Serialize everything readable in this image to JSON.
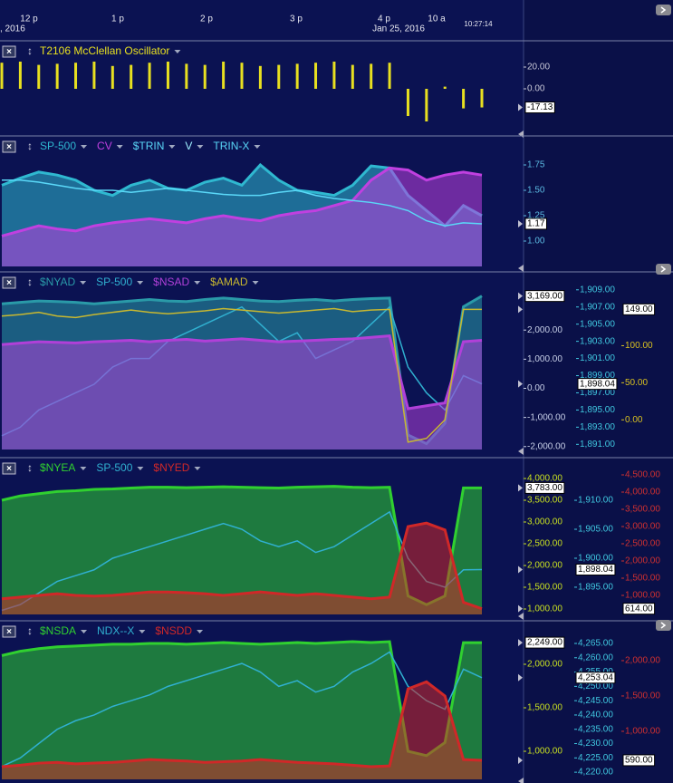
{
  "header": {
    "time_labels": [
      "12 p",
      "1 p",
      "2 p",
      "3 p",
      "4 p",
      "10 a"
    ],
    "date_left": ", 2016",
    "date_right": "Jan 25, 2016",
    "clock": "10:27:14"
  },
  "chart_data": [
    {
      "type": "bar",
      "series": [
        {
          "name": "T2106 McClellan Oscillator",
          "color": "#e8e020",
          "style": "bar",
          "axis": "y",
          "values": [
            24,
            25,
            22,
            23,
            24,
            25,
            21,
            22,
            24,
            25,
            23,
            22,
            25,
            24,
            21,
            22,
            23,
            24,
            25,
            22,
            23,
            24,
            -25,
            -30,
            2,
            -18,
            -17.13
          ]
        }
      ],
      "ylim": [
        -40,
        30
      ],
      "yticks": [
        {
          "value": 20,
          "label": "20.00"
        },
        {
          "value": 0,
          "label": "0.00"
        }
      ],
      "y_current": {
        "value": -17.13,
        "label": "-17.13"
      },
      "y_color": "#c8c8d8"
    },
    {
      "type": "line",
      "series": [
        {
          "name": "SP-500",
          "color": "#2fb8d0",
          "style": "area",
          "axis": "y",
          "values": [
            1.55,
            1.62,
            1.68,
            1.65,
            1.6,
            1.5,
            1.45,
            1.55,
            1.6,
            1.52,
            1.5,
            1.58,
            1.62,
            1.55,
            1.75,
            1.6,
            1.5,
            1.48,
            1.45,
            1.55,
            1.74,
            1.72,
            1.45,
            1.3,
            1.15,
            1.35,
            1.25
          ]
        },
        {
          "name": "CV",
          "color": "#c040e0",
          "style": "area",
          "axis": "y",
          "values": [
            1.05,
            1.1,
            1.15,
            1.12,
            1.1,
            1.15,
            1.18,
            1.2,
            1.22,
            1.2,
            1.18,
            1.22,
            1.25,
            1.22,
            1.2,
            1.25,
            1.28,
            1.3,
            1.35,
            1.4,
            1.6,
            1.72,
            1.7,
            1.6,
            1.65,
            1.68,
            1.65
          ]
        },
        {
          "name": "$TRIN",
          "color": "#5ad8f8",
          "style": "line",
          "axis": "y",
          "values": [
            1.6,
            1.6,
            1.58,
            1.55,
            1.52,
            1.5,
            1.5,
            1.48,
            1.5,
            1.52,
            1.5,
            1.48,
            1.46,
            1.45,
            1.45,
            1.48,
            1.5,
            1.45,
            1.42,
            1.4,
            1.38,
            1.35,
            1.3,
            1.2,
            1.15,
            1.18,
            1.17
          ]
        },
        {
          "name": "V",
          "color": "#a0f0ff",
          "style": "none",
          "axis": "y",
          "values": []
        },
        {
          "name": "TRIN-X",
          "color": "#5ad8f8",
          "style": "none",
          "axis": "y",
          "values": []
        }
      ],
      "ylim": [
        0.75,
        1.875
      ],
      "yticks": [
        {
          "value": 1.75,
          "label": "1.75"
        },
        {
          "value": 1.5,
          "label": "1.50"
        },
        {
          "value": 1.25,
          "label": "1.25"
        },
        {
          "value": 1,
          "label": "1.00"
        }
      ],
      "y_current": {
        "value": 1.17,
        "label": "1.17"
      },
      "y_color": "#5ab8e0"
    },
    {
      "type": "line",
      "series": [
        {
          "name": "$NYAD",
          "color": "#2a9aa8",
          "style": "area",
          "axis": "y",
          "values": [
            2900,
            2950,
            3000,
            2980,
            2950,
            2900,
            2950,
            3000,
            3050,
            3000,
            2980,
            3050,
            3100,
            3050,
            3000,
            2980,
            3020,
            3050,
            3000,
            3050,
            3080,
            3100,
            -1600,
            -1900,
            -1200,
            2800,
            3169
          ]
        },
        {
          "name": "SP-500",
          "color": "#30b0d0",
          "style": "line",
          "axis": "y2",
          "values": [
            1892,
            1893,
            1895,
            1896,
            1897,
            1898,
            1900,
            1901,
            1901,
            1903,
            1904,
            1905,
            1906,
            1907,
            1905,
            1903,
            1904,
            1901,
            1902,
            1903,
            1905,
            1907,
            1900,
            1897,
            1895,
            1899,
            1898.04
          ]
        },
        {
          "name": "$NSAD",
          "color": "#b040d8",
          "style": "area",
          "axis": "y",
          "values": [
            1500,
            1550,
            1600,
            1580,
            1560,
            1600,
            1620,
            1650,
            1600,
            1650,
            1680,
            1620,
            1660,
            1700,
            1650,
            1600,
            1620,
            1650,
            1680,
            1700,
            1750,
            1800,
            -700,
            -600,
            -500,
            1600,
            1650
          ]
        },
        {
          "name": "$AMAD",
          "color": "#c8b830",
          "style": "line",
          "axis": "y3",
          "values": [
            140,
            142,
            145,
            140,
            138,
            142,
            145,
            148,
            145,
            143,
            145,
            147,
            150,
            148,
            146,
            144,
            146,
            148,
            150,
            146,
            148,
            149,
            -30,
            -25,
            0,
            149,
            149
          ]
        }
      ],
      "ylim": [
        -2100,
        3500
      ],
      "yticks": [
        {
          "value": 2000,
          "label": "2,000.00"
        },
        {
          "value": 1000,
          "label": "1,000.00"
        },
        {
          "value": 0,
          "label": "0.00"
        },
        {
          "value": -1000,
          "label": "-1,000.00"
        },
        {
          "value": -2000,
          "label": "-2,000.00"
        }
      ],
      "y_current": {
        "value": 3169,
        "label": "3,169.00"
      },
      "y_color": "#c8d0e8",
      "y2lim": [
        1890.4,
        1909.4
      ],
      "y2ticks": [
        {
          "value": 1909,
          "label": "1,909.00"
        },
        {
          "value": 1907,
          "label": "1,907.00"
        },
        {
          "value": 1905,
          "label": "1,905.00"
        },
        {
          "value": 1903,
          "label": "1,903.00"
        },
        {
          "value": 1901,
          "label": "1,901.00"
        },
        {
          "value": 1899,
          "label": "1,899.00"
        },
        {
          "value": 1897,
          "label": "1,897.00"
        },
        {
          "value": 1895,
          "label": "1,895.00"
        },
        {
          "value": 1893,
          "label": "1,893.00"
        },
        {
          "value": 1891,
          "label": "1,891.00"
        }
      ],
      "y2_current": {
        "value": 1898.04,
        "label": "1,898.04"
      },
      "y2_color": "#40c8e0",
      "y3lim": [
        -40,
        180
      ],
      "y3ticks": [
        {
          "value": 100,
          "label": "100.00"
        },
        {
          "value": 50,
          "label": "50.00"
        },
        {
          "value": 0,
          "label": "0.00"
        }
      ],
      "y3_current": {
        "value": 149,
        "label": "149.00"
      },
      "y3_color": "#d8c020"
    },
    {
      "type": "line",
      "series": [
        {
          "name": "$NYEA",
          "color": "#30d030",
          "style": "area",
          "axis": "y",
          "values": [
            3500,
            3600,
            3650,
            3700,
            3720,
            3750,
            3760,
            3780,
            3800,
            3800,
            3790,
            3800,
            3810,
            3800,
            3790,
            3780,
            3800,
            3810,
            3820,
            3800,
            3790,
            3800,
            1300,
            1100,
            1300,
            3783,
            3783
          ]
        },
        {
          "name": "SP-500",
          "color": "#30b0d0",
          "style": "line",
          "axis": "y2",
          "values": [
            1891,
            1892,
            1894,
            1896,
            1897,
            1898,
            1900,
            1901,
            1902,
            1903,
            1904,
            1905,
            1906,
            1905,
            1903,
            1902,
            1903,
            1901,
            1902,
            1904,
            1906,
            1908,
            1900,
            1896,
            1895,
            1898,
            1898.04
          ]
        },
        {
          "name": "$NYED",
          "color": "#d02828",
          "style": "area",
          "axis": "y3",
          "values": [
            900,
            950,
            1000,
            1050,
            1000,
            980,
            1000,
            1050,
            1100,
            1100,
            1080,
            1050,
            1000,
            1050,
            1100,
            1050,
            1000,
            1050,
            1000,
            950,
            900,
            950,
            3000,
            3100,
            2900,
            800,
            614
          ]
        }
      ],
      "ylim": [
        875,
        4125
      ],
      "yticks": [
        {
          "value": 4000,
          "label": "4,000.00"
        },
        {
          "value": 3500,
          "label": "3,500.00"
        },
        {
          "value": 3000,
          "label": "3,000.00"
        },
        {
          "value": 2500,
          "label": "2,500.00"
        },
        {
          "value": 2000,
          "label": "2,000.00"
        },
        {
          "value": 1500,
          "label": "1,500.00"
        },
        {
          "value": 1000,
          "label": "1,000.00"
        }
      ],
      "y_current": {
        "value": 3783,
        "label": "3,783.00"
      },
      "y_color": "#c8e020",
      "y2lim": [
        1890.3,
        1914.7
      ],
      "y2ticks": [
        {
          "value": 1910,
          "label": "1,910.00"
        },
        {
          "value": 1905,
          "label": "1,905.00"
        },
        {
          "value": 1900,
          "label": "1,900.00"
        },
        {
          "value": 1895,
          "label": "1,895.00"
        }
      ],
      "y2_current": {
        "value": 1898.04,
        "label": "1,898.04"
      },
      "y2_color": "#40c8e0",
      "y3lim": [
        447,
        4553
      ],
      "y3ticks": [
        {
          "value": 4500,
          "label": "4,500.00"
        },
        {
          "value": 4000,
          "label": "4,000.00"
        },
        {
          "value": 3500,
          "label": "3,500.00"
        },
        {
          "value": 3000,
          "label": "3,000.00"
        },
        {
          "value": 2500,
          "label": "2,500.00"
        },
        {
          "value": 2000,
          "label": "2,000.00"
        },
        {
          "value": 1500,
          "label": "1,500.00"
        },
        {
          "value": 1000,
          "label": "1,000.00"
        }
      ],
      "y3_current": {
        "value": 614,
        "label": "614.00"
      },
      "y3_color": "#d03030"
    },
    {
      "type": "line",
      "series": [
        {
          "name": "$NSDA",
          "color": "#30d030",
          "style": "area",
          "axis": "y",
          "values": [
            2100,
            2150,
            2180,
            2200,
            2210,
            2220,
            2230,
            2230,
            2240,
            2240,
            2230,
            2240,
            2250,
            2240,
            2230,
            2240,
            2250,
            2240,
            2250,
            2260,
            2250,
            2260,
            1000,
            950,
            1100,
            2249,
            2249
          ]
        },
        {
          "name": "NDX--X",
          "color": "#30b0d0",
          "style": "line",
          "axis": "y2",
          "values": [
            4222,
            4225,
            4230,
            4235,
            4238,
            4240,
            4243,
            4245,
            4247,
            4250,
            4252,
            4254,
            4256,
            4258,
            4255,
            4250,
            4252,
            4248,
            4250,
            4255,
            4258,
            4262,
            4250,
            4245,
            4242,
            4256,
            4253.04
          ]
        },
        {
          "name": "$NSDD",
          "color": "#d02828",
          "style": "area",
          "axis": "y3",
          "values": [
            500,
            520,
            550,
            560,
            540,
            550,
            560,
            580,
            600,
            590,
            580,
            560,
            570,
            580,
            600,
            580,
            560,
            550,
            540,
            520,
            500,
            510,
            1600,
            1700,
            1500,
            600,
            590
          ]
        }
      ],
      "ylim": [
        677,
        2302
      ],
      "yticks": [
        {
          "value": 2000,
          "label": "2,000.00"
        },
        {
          "value": 1500,
          "label": "1,500.00"
        },
        {
          "value": 1000,
          "label": "1,000.00"
        }
      ],
      "y_current": {
        "value": 2249,
        "label": "2,249.00"
      },
      "y_color": "#c8e020",
      "y2lim": [
        4217.5,
        4266.9
      ],
      "y2ticks": [
        {
          "value": 4265,
          "label": "4,265.00"
        },
        {
          "value": 4260,
          "label": "4,260.00"
        },
        {
          "value": 4255,
          "label": "4,255.00"
        },
        {
          "value": 4250,
          "label": "4,250.00"
        },
        {
          "value": 4245,
          "label": "4,245.00"
        },
        {
          "value": 4240,
          "label": "4,240.00"
        },
        {
          "value": 4235,
          "label": "4,235.00"
        },
        {
          "value": 4230,
          "label": "4,230.00"
        },
        {
          "value": 4225,
          "label": "4,225.00"
        },
        {
          "value": 4220,
          "label": "4,220.00"
        }
      ],
      "y2_current": {
        "value": 4253.04,
        "label": "4,253.04"
      },
      "y2_color": "#40c8e0",
      "y3lim": [
        320,
        2320
      ],
      "y3ticks": [
        {
          "value": 2000,
          "label": "2,000.00"
        },
        {
          "value": 1500,
          "label": "1,500.00"
        },
        {
          "value": 1000,
          "label": "1,000.00"
        }
      ],
      "y3_current": {
        "value": 590,
        "label": "590.00"
      },
      "y3_color": "#d03030"
    }
  ]
}
